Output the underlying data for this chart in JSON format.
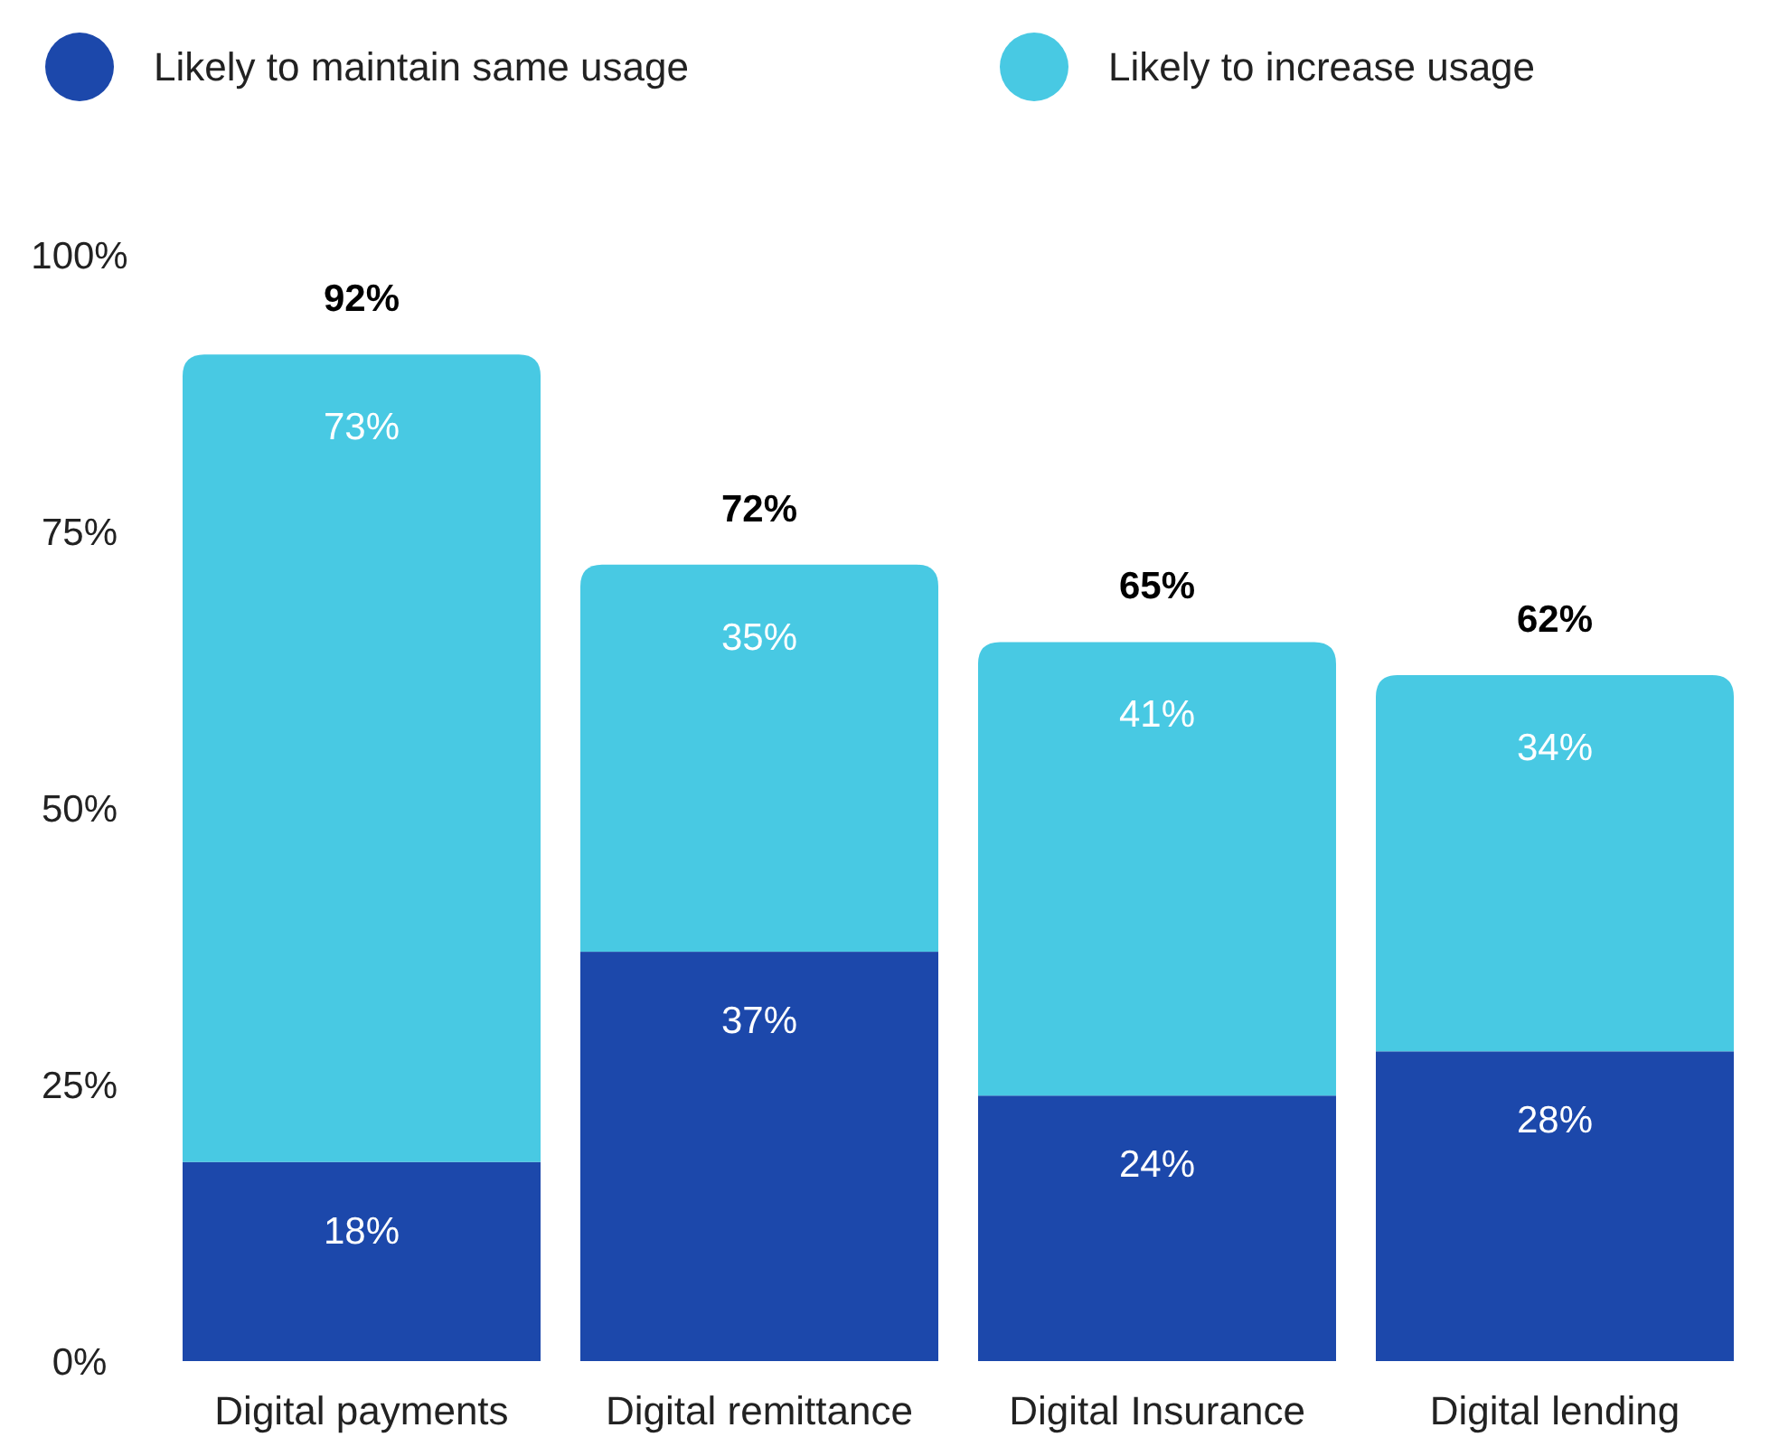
{
  "chart_data": {
    "type": "bar",
    "stacked": true,
    "categories": [
      "Digital payments",
      "Digital remittance",
      "Digital Insurance",
      "Digital lending"
    ],
    "series": [
      {
        "name": "Likely to maintain same usage",
        "color": "#1c48ab",
        "values": [
          18,
          37,
          24,
          28
        ],
        "value_labels": [
          "18%",
          "37%",
          "24%",
          "28%"
        ]
      },
      {
        "name": "Likely to increase usage",
        "color": "#48c9e3",
        "values": [
          73,
          35,
          41,
          34
        ],
        "value_labels": [
          "73%",
          "35%",
          "41%",
          "34%"
        ]
      }
    ],
    "totals": [
      "92%",
      "72%",
      "65%",
      "62%"
    ],
    "ylim": [
      0,
      100
    ],
    "yticks": [
      {
        "value": 0,
        "label": "0%"
      },
      {
        "value": 25,
        "label": "25%"
      },
      {
        "value": 50,
        "label": "50%"
      },
      {
        "value": 75,
        "label": "75%"
      },
      {
        "value": 100,
        "label": "100%"
      }
    ],
    "grid": false,
    "legend": "top left"
  }
}
